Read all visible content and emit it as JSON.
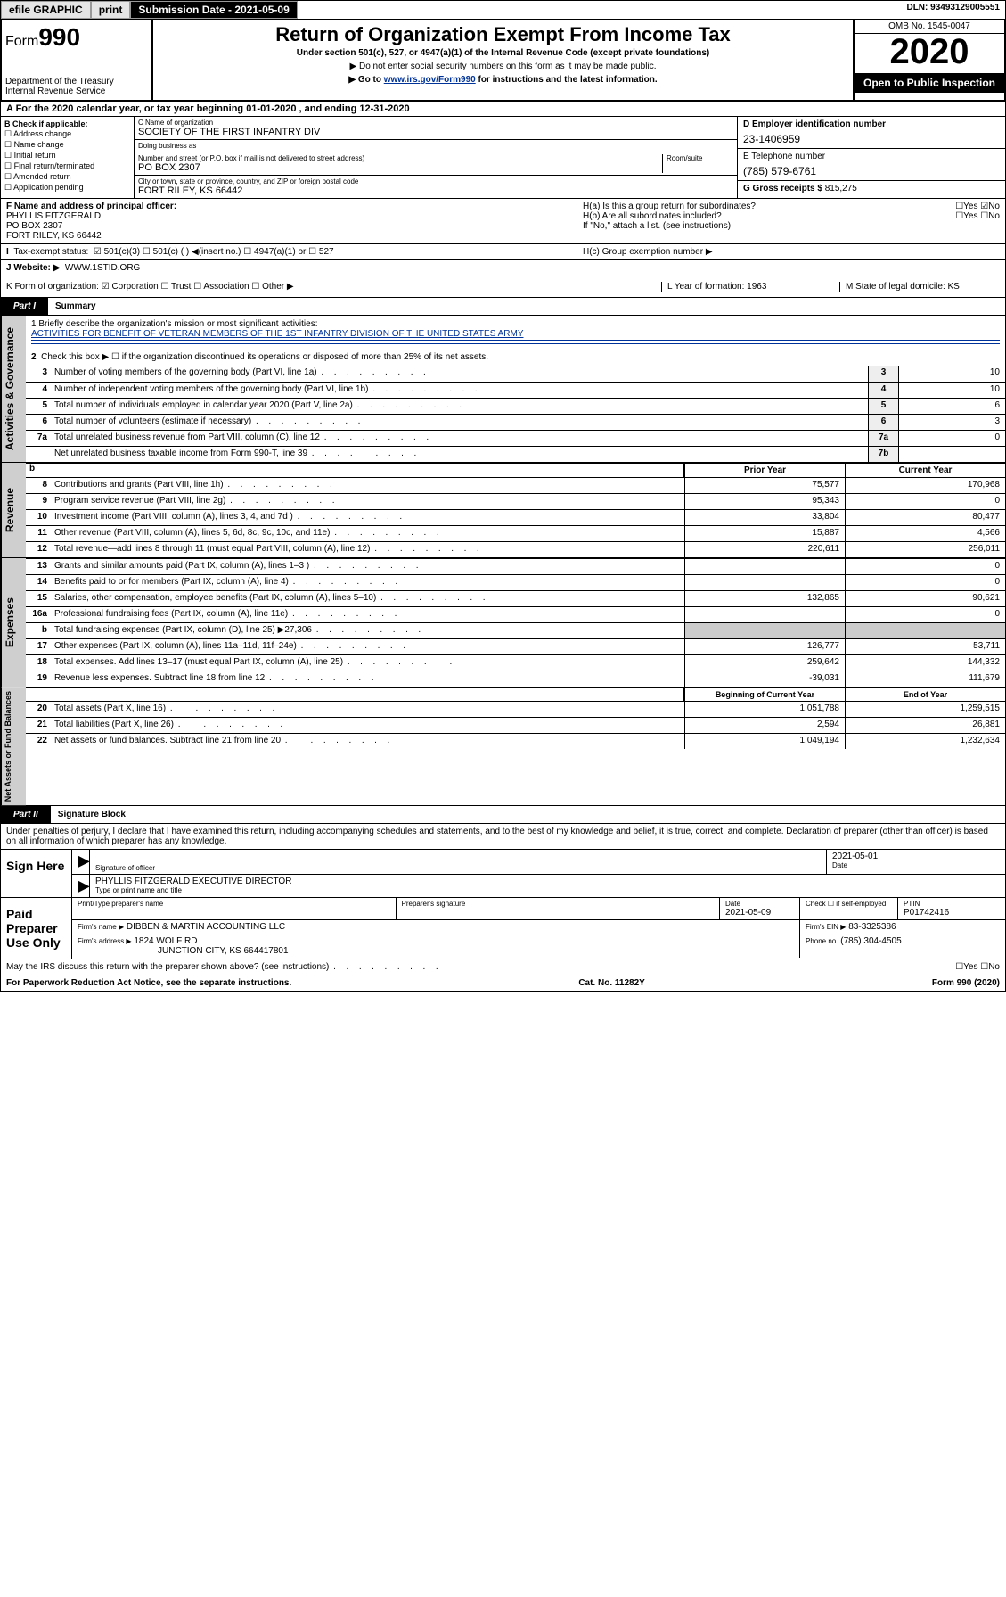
{
  "topbar": {
    "efile": "efile GRAPHIC",
    "print": "print",
    "sub_label": "Submission Date - 2021-05-09",
    "dln": "DLN: 93493129005551"
  },
  "header": {
    "form_prefix": "Form",
    "form_num": "990",
    "dept": "Department of the Treasury\nInternal Revenue Service",
    "title": "Return of Organization Exempt From Income Tax",
    "sub1": "Under section 501(c), 527, or 4947(a)(1) of the Internal Revenue Code (except private foundations)",
    "sub2": "▶ Do not enter social security numbers on this form as it may be made public.",
    "sub3_pre": "▶ Go to ",
    "sub3_link": "www.irs.gov/Form990",
    "sub3_post": " for instructions and the latest information.",
    "omb": "OMB No. 1545-0047",
    "year": "2020",
    "open": "Open to Public Inspection"
  },
  "period": {
    "text": "A For the 2020 calendar year, or tax year beginning 01-01-2020    , and ending 12-31-2020"
  },
  "boxB": {
    "title": "B Check if applicable:",
    "items": [
      "Address change",
      "Name change",
      "Initial return",
      "Final return/terminated",
      "Amended return",
      "Application pending"
    ]
  },
  "boxC": {
    "name_label": "C Name of organization",
    "name": "SOCIETY OF THE FIRST INFANTRY DIV",
    "dba_label": "Doing business as",
    "dba": "",
    "addr_label": "Number and street (or P.O. box if mail is not delivered to street address)",
    "room_label": "Room/suite",
    "addr": "PO BOX 2307",
    "city_label": "City or town, state or province, country, and ZIP or foreign postal code",
    "city": "FORT RILEY, KS  66442"
  },
  "boxD": {
    "label": "D Employer identification number",
    "val": "23-1406959"
  },
  "boxE": {
    "label": "E Telephone number",
    "val": "(785) 579-6761"
  },
  "boxG": {
    "label": "G Gross receipts $",
    "val": "815,275"
  },
  "boxF": {
    "label": "F  Name and address of principal officer:",
    "line1": "PHYLLIS FITZGERALD",
    "line2": "PO BOX 2307",
    "line3": "FORT RILEY, KS  66442"
  },
  "boxH": {
    "ha": "H(a)  Is this a group return for subordinates?",
    "ha_ans": "☐Yes ☑No",
    "hb": "H(b)  Are all subordinates included?",
    "hb_ans": "☐Yes ☐No",
    "hb_note": "If \"No,\" attach a list. (see instructions)",
    "hc": "H(c)  Group exemption number ▶"
  },
  "taxex": {
    "label": "Tax-exempt status:",
    "opts": "☑ 501(c)(3)   ☐ 501(c) (  ) ◀(insert no.)   ☐ 4947(a)(1) or   ☐ 527"
  },
  "website": {
    "label": "J   Website: ▶",
    "val": "WWW.1STID.ORG"
  },
  "krow": {
    "k": "K Form of organization:  ☑ Corporation  ☐ Trust  ☐ Association  ☐ Other ▶",
    "l": "L Year of formation: 1963",
    "m": "M State of legal domicile: KS"
  },
  "part1": {
    "tab": "Part I",
    "title": "Summary",
    "q1": "1  Briefly describe the organization's mission or most significant activities:",
    "q1a": "ACTIVITIES FOR BENEFIT OF VETERAN MEMBERS OF THE 1ST INFANTRY DIVISION OF THE UNITED STATES ARMY",
    "q2": "Check this box ▶ ☐  if the organization discontinued its operations or disposed of more than 25% of its net assets."
  },
  "gov_lines": [
    {
      "n": "3",
      "t": "Number of voting members of the governing body (Part VI, line 1a)",
      "b": "3",
      "v": "10"
    },
    {
      "n": "4",
      "t": "Number of independent voting members of the governing body (Part VI, line 1b)",
      "b": "4",
      "v": "10"
    },
    {
      "n": "5",
      "t": "Total number of individuals employed in calendar year 2020 (Part V, line 2a)",
      "b": "5",
      "v": "6"
    },
    {
      "n": "6",
      "t": "Total number of volunteers (estimate if necessary)",
      "b": "6",
      "v": "3"
    },
    {
      "n": "7a",
      "t": "Total unrelated business revenue from Part VIII, column (C), line 12",
      "b": "7a",
      "v": "0"
    },
    {
      "n": "",
      "t": "Net unrelated business taxable income from Form 990-T, line 39",
      "b": "7b",
      "v": ""
    }
  ],
  "rev_hdr": {
    "b": "b",
    "c1": "Prior Year",
    "c2": "Current Year"
  },
  "rev_lines": [
    {
      "n": "8",
      "t": "Contributions and grants (Part VIII, line 1h)",
      "c1": "75,577",
      "c2": "170,968"
    },
    {
      "n": "9",
      "t": "Program service revenue (Part VIII, line 2g)",
      "c1": "95,343",
      "c2": "0"
    },
    {
      "n": "10",
      "t": "Investment income (Part VIII, column (A), lines 3, 4, and 7d )",
      "c1": "33,804",
      "c2": "80,477"
    },
    {
      "n": "11",
      "t": "Other revenue (Part VIII, column (A), lines 5, 6d, 8c, 9c, 10c, and 11e)",
      "c1": "15,887",
      "c2": "4,566"
    },
    {
      "n": "12",
      "t": "Total revenue—add lines 8 through 11 (must equal Part VIII, column (A), line 12)",
      "c1": "220,611",
      "c2": "256,011"
    }
  ],
  "exp_lines": [
    {
      "n": "13",
      "t": "Grants and similar amounts paid (Part IX, column (A), lines 1–3 )",
      "c1": "",
      "c2": "0"
    },
    {
      "n": "14",
      "t": "Benefits paid to or for members (Part IX, column (A), line 4)",
      "c1": "",
      "c2": "0"
    },
    {
      "n": "15",
      "t": "Salaries, other compensation, employee benefits (Part IX, column (A), lines 5–10)",
      "c1": "132,865",
      "c2": "90,621"
    },
    {
      "n": "16a",
      "t": "Professional fundraising fees (Part IX, column (A), line 11e)",
      "c1": "",
      "c2": "0"
    },
    {
      "n": "b",
      "t": "Total fundraising expenses (Part IX, column (D), line 25) ▶27,306",
      "c1": "",
      "c2": "",
      "shade": true
    },
    {
      "n": "17",
      "t": "Other expenses (Part IX, column (A), lines 11a–11d, 11f–24e)",
      "c1": "126,777",
      "c2": "53,711"
    },
    {
      "n": "18",
      "t": "Total expenses. Add lines 13–17 (must equal Part IX, column (A), line 25)",
      "c1": "259,642",
      "c2": "144,332"
    },
    {
      "n": "19",
      "t": "Revenue less expenses. Subtract line 18 from line 12",
      "c1": "-39,031",
      "c2": "111,679"
    }
  ],
  "na_hdr": {
    "c1": "Beginning of Current Year",
    "c2": "End of Year"
  },
  "na_lines": [
    {
      "n": "20",
      "t": "Total assets (Part X, line 16)",
      "c1": "1,051,788",
      "c2": "1,259,515"
    },
    {
      "n": "21",
      "t": "Total liabilities (Part X, line 26)",
      "c1": "2,594",
      "c2": "26,881"
    },
    {
      "n": "22",
      "t": "Net assets or fund balances. Subtract line 21 from line 20",
      "c1": "1,049,194",
      "c2": "1,232,634"
    }
  ],
  "sidetabs": {
    "gov": "Activities & Governance",
    "rev": "Revenue",
    "exp": "Expenses",
    "na": "Net Assets or Fund Balances"
  },
  "part2": {
    "tab": "Part II",
    "title": "Signature Block"
  },
  "perjury": "Under penalties of perjury, I declare that I have examined this return, including accompanying schedules and statements, and to the best of my knowledge and belief, it is true, correct, and complete. Declaration of preparer (other than officer) is based on all information of which preparer has any knowledge.",
  "sign": {
    "l": "Sign Here",
    "sig_label": "Signature of officer",
    "date": "2021-05-01",
    "date_label": "Date",
    "name": "PHYLLIS FITZGERALD  EXECUTIVE DIRECTOR",
    "name_label": "Type or print name and title"
  },
  "paid": {
    "l": "Paid Preparer Use Only",
    "h_prep": "Print/Type preparer's name",
    "h_sig": "Preparer's signature",
    "h_date": "Date",
    "date": "2021-05-09",
    "h_check": "Check ☐ if self-employed",
    "h_ptin": "PTIN",
    "ptin": "P01742416",
    "firm_label": "Firm's name    ▶",
    "firm": "DIBBEN & MARTIN ACCOUNTING LLC",
    "ein_label": "Firm's EIN ▶",
    "ein": "83-3325386",
    "addr_label": "Firm's address ▶",
    "addr1": "1824 WOLF RD",
    "addr2": "JUNCTION CITY, KS  664417801",
    "phone_label": "Phone no.",
    "phone": "(785) 304-4505"
  },
  "discuss": {
    "q": "May the IRS discuss this return with the preparer shown above? (see instructions)",
    "a": "☐Yes  ☐No"
  },
  "foot": {
    "l": "For Paperwork Reduction Act Notice, see the separate instructions.",
    "m": "Cat. No. 11282Y",
    "r": "Form 990 (2020)"
  }
}
